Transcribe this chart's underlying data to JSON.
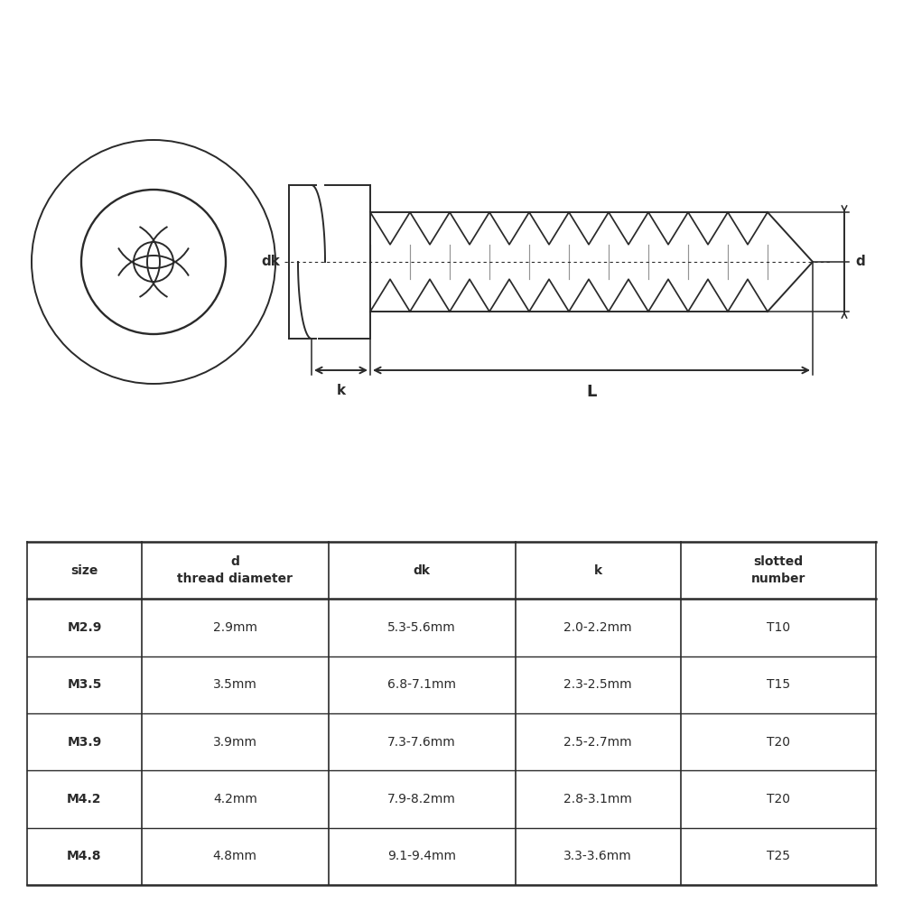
{
  "bg_color": "#ffffff",
  "line_color": "#2a2a2a",
  "table_headers_line1": [
    "size",
    "d",
    "dk",
    "k",
    "slotted"
  ],
  "table_headers_line2": [
    "",
    "thread diameter",
    "",
    "",
    "number"
  ],
  "table_rows": [
    [
      "M2.9",
      "2.9mm",
      "5.3-5.6mm",
      "2.0-2.2mm",
      "T10"
    ],
    [
      "M3.5",
      "3.5mm",
      "6.8-7.1mm",
      "2.3-2.5mm",
      "T15"
    ],
    [
      "M3.9",
      "3.9mm",
      "7.3-7.6mm",
      "2.5-2.7mm",
      "T20"
    ],
    [
      "M4.2",
      "4.2mm",
      "7.9-8.2mm",
      "2.8-3.1mm",
      "T20"
    ],
    [
      "M4.8",
      "4.8mm",
      "9.1-9.4mm",
      "3.3-3.6mm",
      "T25"
    ]
  ],
  "label_dk": "dk",
  "label_d": "d",
  "label_k": "k",
  "label_L": "L"
}
